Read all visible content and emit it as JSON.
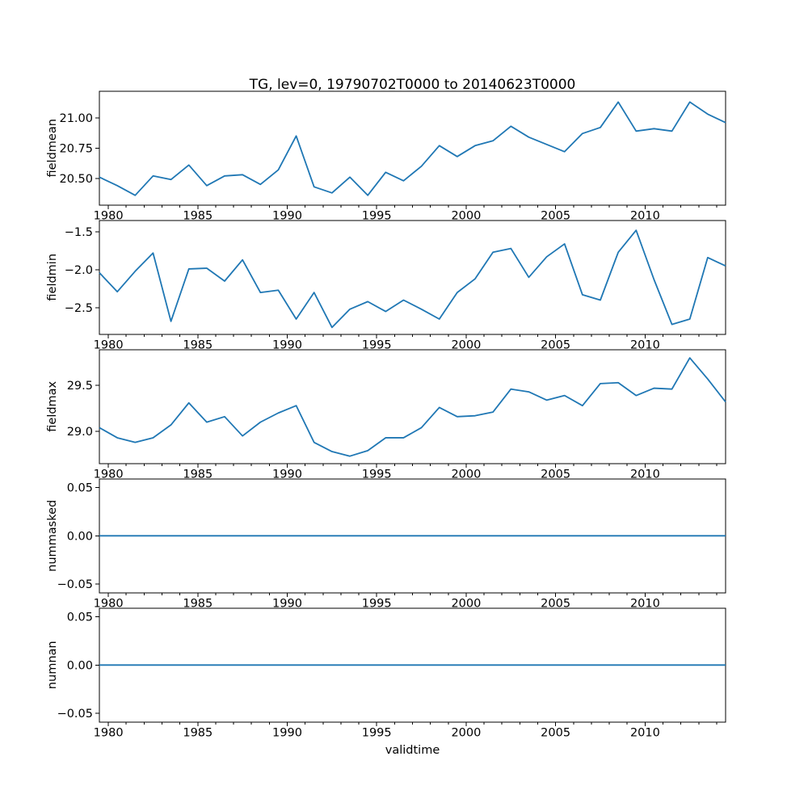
{
  "chart_data": {
    "type": "line",
    "title": "TG, lev=0, 19790702T0000 to 20140623T0000",
    "xlabel": "validtime",
    "line_color": "#1f77b4",
    "axes_color": "#000000",
    "background_color": "#ffffff",
    "grid": false,
    "legend": "none",
    "xlim": [
      1979.5,
      2014.5
    ],
    "x_major_ticks": [
      1980,
      1985,
      1990,
      1995,
      2000,
      2005,
      2010
    ],
    "x_major_tick_labels": [
      "1980",
      "1985",
      "1990",
      "1995",
      "2000",
      "2005",
      "2010"
    ],
    "x_minor_tick_step_years": 1,
    "x_minor_tick_range": [
      1980,
      2014
    ],
    "x": [
      1979.5,
      1980.5,
      1981.5,
      1982.5,
      1983.5,
      1984.5,
      1985.5,
      1986.5,
      1987.5,
      1988.5,
      1989.5,
      1990.5,
      1991.5,
      1992.5,
      1993.5,
      1994.5,
      1995.5,
      1996.5,
      1997.5,
      1998.5,
      1999.5,
      2000.5,
      2001.5,
      2002.5,
      2003.5,
      2004.5,
      2005.5,
      2006.5,
      2007.5,
      2008.5,
      2009.5,
      2010.5,
      2011.5,
      2012.5,
      2013.5,
      2014.5
    ],
    "subplots": [
      {
        "ylabel": "fieldmean",
        "ylim": [
          20.28,
          21.22
        ],
        "yticks": [
          20.5,
          20.75,
          21.0
        ],
        "ytick_labels": [
          "20.50",
          "20.75",
          "21.00"
        ],
        "values": [
          20.51,
          20.44,
          20.36,
          20.52,
          20.49,
          20.61,
          20.44,
          20.52,
          20.53,
          20.45,
          20.57,
          20.85,
          20.43,
          20.38,
          20.51,
          20.36,
          20.55,
          20.48,
          20.6,
          20.77,
          20.68,
          20.77,
          20.81,
          20.93,
          20.84,
          20.78,
          20.72,
          20.87,
          20.92,
          21.13,
          20.89,
          20.91,
          20.89,
          21.13,
          21.03,
          20.96
        ]
      },
      {
        "ylabel": "fieldmin",
        "ylim": [
          -2.85,
          -1.35
        ],
        "yticks": [
          -2.5,
          -2.0,
          -1.5
        ],
        "ytick_labels": [
          "−2.5",
          "−2.0",
          "−1.5"
        ],
        "values": [
          -2.04,
          -2.29,
          -2.02,
          -1.78,
          -2.68,
          -1.99,
          -1.98,
          -2.15,
          -1.87,
          -2.3,
          -2.27,
          -2.65,
          -2.3,
          -2.76,
          -2.52,
          -2.42,
          -2.55,
          -2.4,
          -2.52,
          -2.65,
          -2.3,
          -2.12,
          -1.77,
          -1.72,
          -2.1,
          -1.83,
          -1.66,
          -2.33,
          -2.4,
          -1.77,
          -1.48,
          -2.13,
          -2.72,
          -2.65,
          -1.84,
          -1.95
        ]
      },
      {
        "ylabel": "fieldmax",
        "ylim": [
          28.65,
          29.89
        ],
        "yticks": [
          29.0,
          29.5
        ],
        "ytick_labels": [
          "29.0",
          "29.5"
        ],
        "values": [
          29.04,
          28.93,
          28.88,
          28.93,
          29.07,
          29.31,
          29.1,
          29.16,
          28.95,
          29.1,
          29.2,
          29.28,
          28.88,
          28.78,
          28.73,
          28.79,
          28.93,
          28.93,
          29.04,
          29.26,
          29.16,
          29.17,
          29.21,
          29.46,
          29.43,
          29.34,
          29.39,
          29.28,
          29.52,
          29.53,
          29.39,
          29.47,
          29.46,
          29.8,
          29.57,
          29.32
        ]
      },
      {
        "ylabel": "nummasked",
        "ylim": [
          -0.0588,
          0.0588
        ],
        "yticks": [
          -0.05,
          0.0,
          0.05
        ],
        "ytick_labels": [
          "−0.05",
          "0.00",
          "0.05"
        ],
        "values": [
          0,
          0,
          0,
          0,
          0,
          0,
          0,
          0,
          0,
          0,
          0,
          0,
          0,
          0,
          0,
          0,
          0,
          0,
          0,
          0,
          0,
          0,
          0,
          0,
          0,
          0,
          0,
          0,
          0,
          0,
          0,
          0,
          0,
          0,
          0,
          0
        ]
      },
      {
        "ylabel": "numnan",
        "ylim": [
          -0.0588,
          0.0588
        ],
        "yticks": [
          -0.05,
          0.0,
          0.05
        ],
        "ytick_labels": [
          "−0.05",
          "0.00",
          "0.05"
        ],
        "values": [
          0,
          0,
          0,
          0,
          0,
          0,
          0,
          0,
          0,
          0,
          0,
          0,
          0,
          0,
          0,
          0,
          0,
          0,
          0,
          0,
          0,
          0,
          0,
          0,
          0,
          0,
          0,
          0,
          0,
          0,
          0,
          0,
          0,
          0,
          0,
          0
        ]
      }
    ]
  }
}
